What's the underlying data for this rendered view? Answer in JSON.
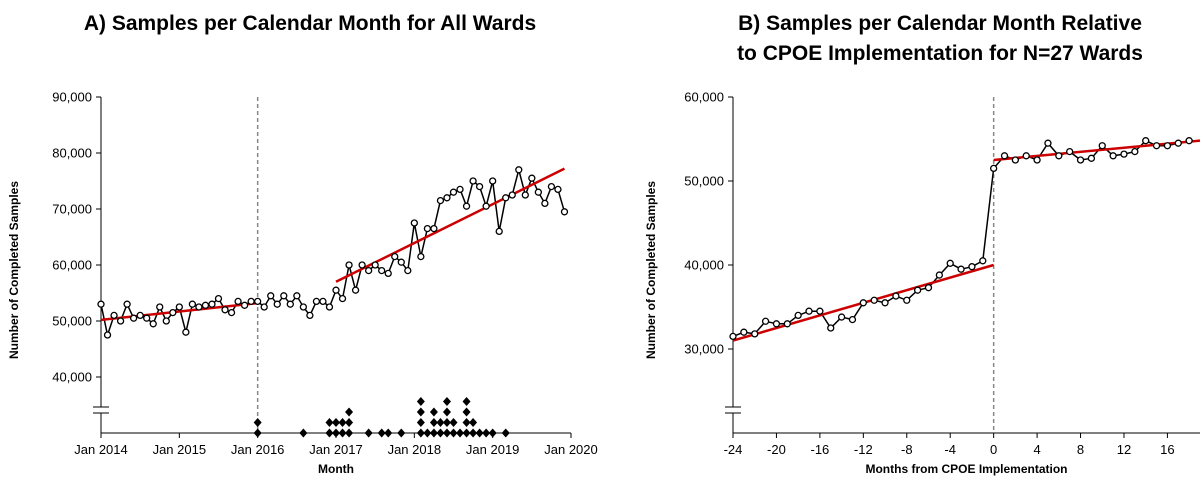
{
  "chart_data": [
    {
      "type": "line",
      "title": [
        "A) Samples per Calendar Month for All Wards"
      ],
      "x_label": "Month",
      "y_label": "Number of Completed Samples",
      "x_is_month": true,
      "xlim": [
        "2014-01",
        "2020-01"
      ],
      "xticks": [
        {
          "value": "2014-01",
          "label": "Jan 2014"
        },
        {
          "value": "2015-01",
          "label": "Jan 2015"
        },
        {
          "value": "2016-01",
          "label": "Jan 2016"
        },
        {
          "value": "2017-01",
          "label": "Jan 2017"
        },
        {
          "value": "2018-01",
          "label": "Jan 2018"
        },
        {
          "value": "2019-01",
          "label": "Jan 2019"
        },
        {
          "value": "2020-01",
          "label": "Jan 2020"
        }
      ],
      "ylim": [
        30000,
        90000
      ],
      "yticks": [
        {
          "value": 40000,
          "label": "40,000"
        },
        {
          "value": 50000,
          "label": "50,000"
        },
        {
          "value": 60000,
          "label": "60,000"
        },
        {
          "value": 70000,
          "label": "70,000"
        },
        {
          "value": 80000,
          "label": "80,000"
        },
        {
          "value": 90000,
          "label": "90,000"
        }
      ],
      "vline": "2016-01",
      "x": [
        "2014-01",
        "2014-02",
        "2014-03",
        "2014-04",
        "2014-05",
        "2014-06",
        "2014-07",
        "2014-08",
        "2014-09",
        "2014-10",
        "2014-11",
        "2014-12",
        "2015-01",
        "2015-02",
        "2015-03",
        "2015-04",
        "2015-05",
        "2015-06",
        "2015-07",
        "2015-08",
        "2015-09",
        "2015-10",
        "2015-11",
        "2015-12",
        "2016-01",
        "2016-02",
        "2016-03",
        "2016-04",
        "2016-05",
        "2016-06",
        "2016-07",
        "2016-08",
        "2016-09",
        "2016-10",
        "2016-11",
        "2016-12",
        "2017-01",
        "2017-02",
        "2017-03",
        "2017-04",
        "2017-05",
        "2017-06",
        "2017-07",
        "2017-08",
        "2017-09",
        "2017-10",
        "2017-11",
        "2017-12",
        "2018-01",
        "2018-02",
        "2018-03",
        "2018-04",
        "2018-05",
        "2018-06",
        "2018-07",
        "2018-08",
        "2018-09",
        "2018-10",
        "2018-11",
        "2018-12",
        "2019-01",
        "2019-02",
        "2019-03",
        "2019-04",
        "2019-05",
        "2019-06",
        "2019-07",
        "2019-08",
        "2019-09",
        "2019-10",
        "2019-11",
        "2019-12"
      ],
      "series": [
        {
          "color": "#000000",
          "values": [
            53000,
            47500,
            51000,
            50000,
            53000,
            50500,
            51000,
            50500,
            49500,
            52500,
            50000,
            51500,
            52500,
            48000,
            53000,
            52500,
            52800,
            53000,
            54000,
            52000,
            51500,
            53500,
            52800,
            53500,
            53500,
            52500,
            54500,
            53000,
            54500,
            53000,
            54500,
            52500,
            51000,
            53500,
            53500,
            52500,
            55500,
            54000,
            60000,
            55500,
            60000,
            59000,
            60000,
            59000,
            58500,
            61500,
            60500,
            59000,
            67500,
            61500,
            66500,
            66500,
            71500,
            72000,
            73000,
            73500,
            70500,
            75000,
            74000,
            70500,
            75000,
            66000,
            72000,
            72500,
            77000,
            72500,
            75500,
            73000,
            71000,
            74000,
            73500,
            69500
          ]
        }
      ],
      "trend_lines": [
        {
          "color": "#cc0000",
          "x": [
            "2014-01",
            "2016-01"
          ],
          "values": [
            50200,
            53200
          ]
        },
        {
          "color": "#cc0000",
          "x": [
            "2017-01",
            "2019-12"
          ],
          "values": [
            57000,
            77200
          ]
        }
      ],
      "implementations": {
        "x": [
          "2016-01",
          "2016-08",
          "2016-12",
          "2017-01",
          "2017-02",
          "2017-03",
          "2017-06",
          "2017-08",
          "2017-09",
          "2017-11",
          "2018-02",
          "2018-03",
          "2018-04",
          "2018-05",
          "2018-06",
          "2018-07",
          "2018-08",
          "2018-09",
          "2018-10",
          "2018-11",
          "2018-12",
          "2019-01",
          "2019-03"
        ],
        "counts": [
          2,
          1,
          2,
          2,
          2,
          3,
          1,
          1,
          1,
          1,
          4,
          1,
          3,
          2,
          4,
          2,
          1,
          4,
          2,
          1,
          1,
          1,
          1
        ]
      }
    },
    {
      "type": "line",
      "title": [
        "B) Samples per Calendar Month Relative",
        "to CPOE Implementation for N=27 Wards"
      ],
      "x_label": "Months from CPOE Implementation",
      "y_label": "Number of Completed Samples",
      "x_is_month": false,
      "xlim": [
        -24,
        19
      ],
      "xticks": [
        -24,
        -20,
        -16,
        -12,
        -8,
        -4,
        0,
        4,
        8,
        12,
        16
      ],
      "ylim": [
        20000,
        60000
      ],
      "yticks": [
        {
          "value": 30000,
          "label": "30,000"
        },
        {
          "value": 40000,
          "label": "40,000"
        },
        {
          "value": 50000,
          "label": "50,000"
        },
        {
          "value": 60000,
          "label": "60,000"
        }
      ],
      "vline": 0,
      "x": [
        -24,
        -23,
        -22,
        -21,
        -20,
        -19,
        -18,
        -17,
        -16,
        -15,
        -14,
        -13,
        -12,
        -11,
        -10,
        -9,
        -8,
        -7,
        -6,
        -5,
        -4,
        -3,
        -2,
        -1,
        0,
        1,
        2,
        3,
        4,
        5,
        6,
        7,
        8,
        9,
        10,
        11,
        12,
        13,
        14,
        15,
        16,
        17,
        18
      ],
      "series": [
        {
          "color": "#000000",
          "values": [
            31500,
            32000,
            31800,
            33300,
            33000,
            33000,
            34000,
            34500,
            34500,
            32500,
            33800,
            33500,
            35500,
            35800,
            35500,
            36300,
            35800,
            37000,
            37300,
            38800,
            40200,
            39500,
            39800,
            40500,
            51500,
            53000,
            52500,
            53000,
            52500,
            54500,
            53000,
            53500,
            52500,
            52700,
            54200,
            53000,
            53200,
            53500,
            54800,
            54200,
            54200,
            54500,
            54800
          ]
        }
      ],
      "trend_lines": [
        {
          "color": "#cc0000",
          "x": [
            -24,
            0
          ],
          "values": [
            31000,
            40000
          ]
        },
        {
          "color": "#cc0000",
          "x": [
            0,
            19
          ],
          "values": [
            52500,
            54800
          ]
        }
      ]
    }
  ]
}
